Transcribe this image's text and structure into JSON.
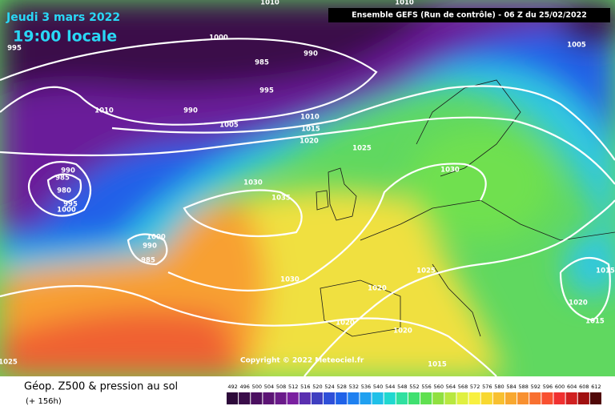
{
  "header": {
    "date": "Jeudi 3 mars 2022",
    "time": "19:00 locale",
    "run": "Ensemble GEFS  (Run de contrôle)  -  06 Z du 25/02/2022"
  },
  "copyright": "Copyright © 2022 Meteociel.fr",
  "isobar_labels": [
    "995",
    "1000",
    "985",
    "990",
    "990",
    "995",
    "1010",
    "1005",
    "1010",
    "1015",
    "1020",
    "1025",
    "1030",
    "1030",
    "1035",
    "990",
    "985",
    "980",
    "995",
    "1000",
    "1000",
    "990",
    "985",
    "1030",
    "1020",
    "1025",
    "1020",
    "1020",
    "1015",
    "1015",
    "1020",
    "1015",
    "1005",
    "1025",
    "1010",
    "1010"
  ],
  "footer": {
    "title": "Géop. Z500 & pression au sol",
    "subtitle": "(+ 156h)"
  },
  "colorbar": {
    "ticks": [
      "492",
      "496",
      "500",
      "504",
      "508",
      "512",
      "516",
      "520",
      "524",
      "528",
      "532",
      "536",
      "540",
      "544",
      "548",
      "552",
      "556",
      "560",
      "564",
      "568",
      "572",
      "576",
      "580",
      "584",
      "588",
      "592",
      "596",
      "600",
      "604",
      "608",
      "612"
    ],
    "colors": [
      "#2d0a3a",
      "#3a0d4a",
      "#4b1060",
      "#5c1475",
      "#6a1a8a",
      "#7a1fa0",
      "#5a2fb0",
      "#3f3fc0",
      "#2e4fd8",
      "#1f62e8",
      "#1e80f0",
      "#20a0f0",
      "#20c0e8",
      "#20d8d0",
      "#30e0a0",
      "#40e070",
      "#60e050",
      "#90e040",
      "#b8e840",
      "#e0f040",
      "#f8f040",
      "#f8d830",
      "#f8c030",
      "#f8a830",
      "#f89030",
      "#f87030",
      "#f85030",
      "#f03030",
      "#d02020",
      "#a01010",
      "#500808"
    ]
  }
}
